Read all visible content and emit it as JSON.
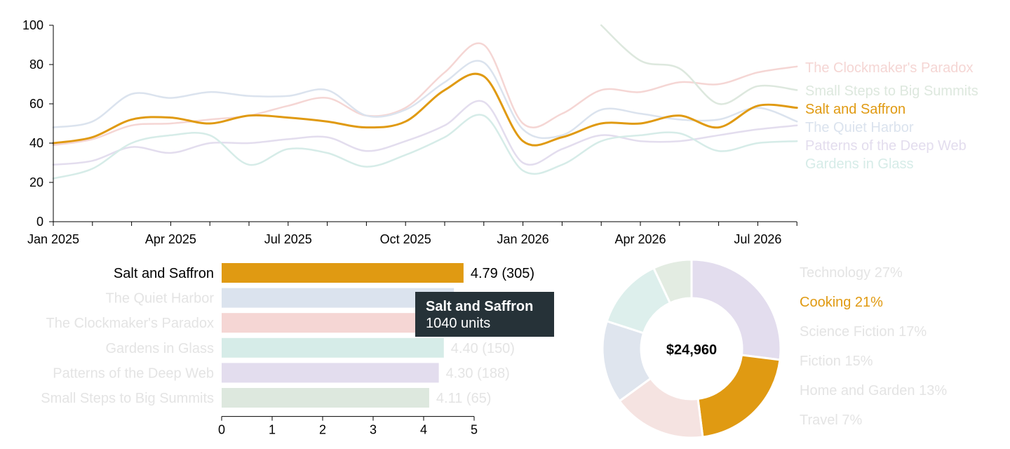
{
  "colors": {
    "highlight": "#e09a12",
    "axis": "#000000",
    "tooltip_bg": "#263238",
    "faded_text": "#e4e4e4",
    "series": {
      "The Clockmaker's Paradox": "#f5d6d4",
      "Small Steps to Big Summits": "#dde8de",
      "Salt and Saffron": "#e09a12",
      "The Quiet Harbor": "#dbe3ee",
      "Patterns of the Deep Web": "#e3ddee",
      "Gardens in Glass": "#d6ece8"
    }
  },
  "chart_data": [
    {
      "type": "line",
      "x": [
        "2025-01",
        "2025-02",
        "2025-03",
        "2025-04",
        "2025-05",
        "2025-06",
        "2025-07",
        "2025-08",
        "2025-09",
        "2025-10",
        "2025-11",
        "2025-12",
        "2026-01",
        "2026-02",
        "2026-03",
        "2026-04",
        "2026-05",
        "2026-06",
        "2026-07",
        "2026-08"
      ],
      "xticks": [
        "Jan 2025",
        "Apr 2025",
        "Jul 2025",
        "Oct 2025",
        "Jan 2026",
        "Apr 2026",
        "Jul 2026"
      ],
      "yticks": [
        "0",
        "20",
        "40",
        "60",
        "80",
        "100"
      ],
      "ylim": [
        0,
        100
      ],
      "highlighted": "Salt and Saffron",
      "series": [
        {
          "name": "The Clockmaker's Paradox",
          "values": [
            39,
            42,
            49,
            50,
            52,
            54,
            59,
            63,
            54,
            58,
            76,
            90,
            50,
            55,
            67,
            66,
            71,
            70,
            76,
            79
          ]
        },
        {
          "name": "Small Steps to Big Summits",
          "values": [
            null,
            null,
            null,
            null,
            null,
            null,
            null,
            null,
            null,
            null,
            null,
            null,
            null,
            null,
            100,
            82,
            78,
            60,
            69,
            67
          ]
        },
        {
          "name": "Salt and Saffron",
          "values": [
            40,
            43,
            52,
            53,
            50,
            54,
            53,
            51,
            48,
            51,
            67,
            74,
            41,
            43,
            50,
            50,
            54,
            48,
            59,
            58
          ]
        },
        {
          "name": "The Quiet Harbor",
          "values": [
            48,
            51,
            65,
            63,
            66,
            64,
            64,
            67,
            54,
            57,
            71,
            81,
            47,
            44,
            57,
            55,
            52,
            52,
            58,
            51
          ]
        },
        {
          "name": "Patterns of the Deep Web",
          "values": [
            29,
            31,
            38,
            35,
            40,
            40,
            42,
            43,
            36,
            41,
            49,
            61,
            30,
            37,
            44,
            41,
            41,
            44,
            47,
            49
          ]
        },
        {
          "name": "Gardens in Glass",
          "values": [
            22,
            27,
            40,
            44,
            44,
            29,
            37,
            35,
            28,
            34,
            43,
            54,
            26,
            29,
            41,
            44,
            45,
            36,
            40,
            41
          ]
        }
      ]
    },
    {
      "type": "bar",
      "orientation": "horizontal",
      "categories": [
        "Salt and Saffron",
        "The Quiet Harbor",
        "The Clockmaker's Paradox",
        "Gardens in Glass",
        "Patterns of the Deep Web",
        "Small Steps to Big Summits"
      ],
      "values": [
        4.79,
        4.6,
        4.55,
        4.4,
        4.3,
        4.11
      ],
      "labels": [
        "4.79 (305)",
        "",
        "",
        "4.40 (150)",
        "4.30 (188)",
        "4.11 (65)"
      ],
      "xlim": [
        0,
        5
      ],
      "xticks": [
        "0",
        "1",
        "2",
        "3",
        "4",
        "5"
      ],
      "highlighted": "Salt and Saffron"
    },
    {
      "type": "pie",
      "center_label": "$24,960",
      "highlighted": "Cooking",
      "slices": [
        {
          "name": "Technology",
          "value": 27,
          "label": "Technology 27%",
          "color": "#e3ddee"
        },
        {
          "name": "Cooking",
          "value": 21,
          "label": "Cooking 21%",
          "color": "#e09a12"
        },
        {
          "name": "Science Fiction",
          "value": 17,
          "label": "Science Fiction 17%",
          "color": "#f5e3e1"
        },
        {
          "name": "Fiction",
          "value": 15,
          "label": "Fiction 15%",
          "color": "#dfe5ee"
        },
        {
          "name": "Home and Garden",
          "value": 13,
          "label": "Home and Garden 13%",
          "color": "#ddefec"
        },
        {
          "name": "Travel",
          "value": 7,
          "label": "Travel 7%",
          "color": "#e3ece2"
        }
      ]
    }
  ],
  "tooltip": {
    "title": "Salt and Saffron",
    "value": "1040 units"
  }
}
